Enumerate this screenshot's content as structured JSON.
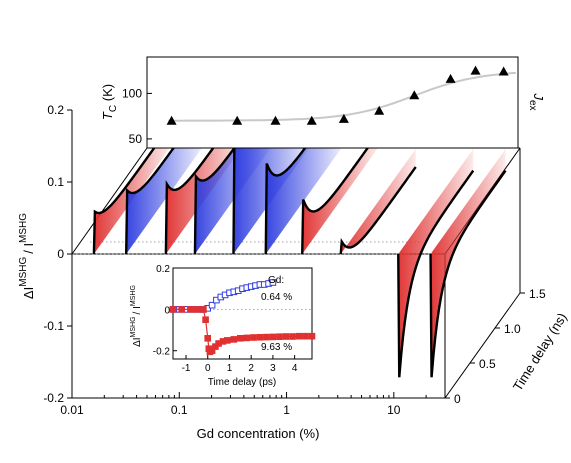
{
  "chart_data": [
    {
      "type": "line",
      "role": "main-3d",
      "xlabel": "Gd concentration (%)",
      "ylabel_main": "ΔI",
      "ylabel_sup": "MSHG",
      "ylabel_div": "/ I",
      "ylabel_div_sup": "MSHG",
      "zlabel": "Time delay (ns)",
      "x_scale": "log",
      "xlim": [
        0.01,
        30
      ],
      "ylim": [
        -0.21,
        0.21
      ],
      "zlim": [
        0,
        1.5
      ],
      "x_ticks": [
        {
          "value": 0.01,
          "label": "0.01"
        },
        {
          "value": 0.1,
          "label": "0.1"
        },
        {
          "value": 1,
          "label": "1"
        },
        {
          "value": 10,
          "label": "10"
        }
      ],
      "y_ticks": [
        {
          "value": 0.2,
          "label": "0.2"
        },
        {
          "value": 0.1,
          "label": "0.1"
        },
        {
          "value": 0,
          "label": "0"
        },
        {
          "value": -0.1,
          "label": "-0.1"
        },
        {
          "value": -0.2,
          "label": "-0.2"
        }
      ],
      "z_ticks": [
        {
          "value": 0,
          "label": "0"
        },
        {
          "value": 0.5,
          "label": "0.5"
        },
        {
          "value": 1.0,
          "label": "1.0"
        },
        {
          "value": 1.5,
          "label": "1.5"
        }
      ],
      "series": [
        {
          "gd": 0.016,
          "peak": 0.06,
          "end": 0.03,
          "color": "#e03030"
        },
        {
          "gd": 0.032,
          "peak": 0.09,
          "end": 0.055,
          "color": "#2f3ee0"
        },
        {
          "gd": 0.075,
          "peak": 0.1,
          "end": 0.055,
          "color": "#e03030"
        },
        {
          "gd": 0.14,
          "peak": 0.11,
          "end": 0.07,
          "color": "#2f3ee0"
        },
        {
          "gd": 0.32,
          "peak": 0.17,
          "end": 0.12,
          "color": "#2f3ee0"
        },
        {
          "gd": 0.64,
          "peak": 0.13,
          "end": 0.07,
          "color": "#2f3ee0"
        },
        {
          "gd": 1.4,
          "peak": 0.08,
          "end": 0.02,
          "color": "#e03030"
        },
        {
          "gd": 3.2,
          "peak": 0.02,
          "end": -0.025,
          "color": "#e03030"
        },
        {
          "gd": 11,
          "peak": -0.19,
          "end": -0.03,
          "color": "#e03030"
        },
        {
          "gd": 22,
          "peak": -0.19,
          "end": -0.03,
          "color": "#e03030"
        }
      ]
    },
    {
      "type": "scatter",
      "role": "tc-panel",
      "ylabel": "T",
      "ylabel_sub": "C",
      "ylabel_unit": " (K)",
      "side_label": "J",
      "side_label_sub": "ex",
      "x_scale": "log",
      "xlim": [
        0.01,
        30
      ],
      "ylim": [
        40,
        140
      ],
      "y_ticks": [
        {
          "value": 50,
          "label": "50"
        },
        {
          "value": 100,
          "label": "100"
        }
      ],
      "x": [
        0.017,
        0.07,
        0.16,
        0.35,
        0.7,
        1.5,
        3.2,
        7.0,
        12,
        22
      ],
      "y": [
        70,
        70,
        70,
        70,
        72,
        81,
        98,
        116,
        125,
        124
      ]
    },
    {
      "type": "scatter",
      "role": "inset",
      "xlabel": "Time delay (ps)",
      "ylabel_main": "ΔI",
      "ylabel_sup": "MSHG",
      "ylabel_div": "/ I",
      "ylabel_div_sup": "MSHG",
      "legend_title": "Gd:",
      "xlim": [
        -1.6,
        4.8
      ],
      "ylim": [
        -0.24,
        0.2
      ],
      "x_ticks": [
        {
          "value": -1,
          "label": "-1"
        },
        {
          "value": 0,
          "label": "0"
        },
        {
          "value": 1,
          "label": "1"
        },
        {
          "value": 2,
          "label": "2"
        },
        {
          "value": 3,
          "label": "3"
        },
        {
          "value": 4,
          "label": "4"
        }
      ],
      "y_ticks": [
        {
          "value": 0.2,
          "label": "0.2"
        },
        {
          "value": 0,
          "label": "0"
        },
        {
          "value": -0.2,
          "label": "-0.2"
        }
      ],
      "series": [
        {
          "name": "0.64 %",
          "color": "#2f3ee0",
          "x": [
            -1.6,
            -1.3,
            -1.0,
            -0.7,
            -0.4,
            -0.2,
            0.0,
            0.2,
            0.4,
            0.6,
            0.8,
            1.0,
            1.2,
            1.4,
            1.6,
            1.8,
            2.0,
            2.2,
            2.4,
            2.6,
            2.8,
            3.0
          ],
          "y": [
            0.0,
            0.0,
            0.0,
            0.0,
            0.0,
            0.0,
            0.005,
            0.02,
            0.045,
            0.06,
            0.07,
            0.08,
            0.085,
            0.09,
            0.1,
            0.105,
            0.11,
            0.115,
            0.12,
            0.12,
            0.125,
            0.13
          ]
        },
        {
          "name": "9.63 %",
          "color": "#e03030",
          "x": [
            -1.6,
            -1.2,
            -0.8,
            -0.5,
            -0.2,
            -0.1,
            0.0,
            0.05,
            0.1,
            0.2,
            0.35,
            0.5,
            0.7,
            0.9,
            1.2,
            1.5,
            1.8,
            2.1,
            2.4,
            2.7,
            3.0,
            3.3,
            3.6,
            3.9,
            4.2,
            4.5,
            4.8
          ],
          "y": [
            0.0,
            0.0,
            0.0,
            0.0,
            0.0,
            -0.05,
            -0.14,
            -0.19,
            -0.205,
            -0.2,
            -0.18,
            -0.165,
            -0.155,
            -0.15,
            -0.145,
            -0.14,
            -0.138,
            -0.136,
            -0.135,
            -0.134,
            -0.133,
            -0.132,
            -0.131,
            -0.131,
            -0.13,
            -0.13,
            -0.13
          ]
        }
      ]
    }
  ]
}
